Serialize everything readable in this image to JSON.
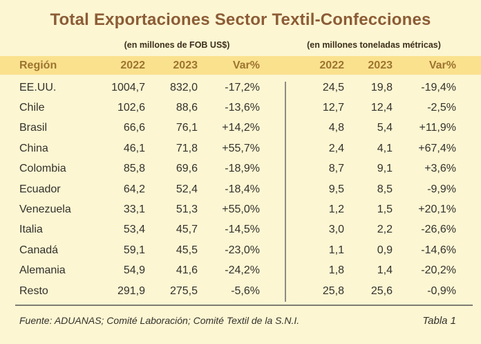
{
  "title": "Total Exportaciones Sector Textil-Confecciones",
  "footer": {
    "source": "Fuente: ADUANAS; Comité Laboración; Comité Textil de la S.N.I.",
    "table_label": "Tabla 1"
  },
  "colors": {
    "background": "#FCF6D3",
    "header_band": "#FAE18E",
    "title_text": "#8C5C35",
    "header_text": "#9D7430",
    "body_text": "#33312B",
    "rule_gray": "#7D7D74"
  },
  "chart_data": {
    "type": "table",
    "title": "Total Exportaciones Sector Textil-Confecciones",
    "row_header": "Región",
    "column_groups": [
      {
        "label": "(en millones de FOB US$)",
        "columns": [
          "2022",
          "2023",
          "Var%"
        ]
      },
      {
        "label": "(en millones toneladas métricas)",
        "columns": [
          "2022",
          "2023",
          "Var%"
        ]
      }
    ],
    "rows": [
      {
        "region": "EE.UU.",
        "fob_musd": [
          "1004,7",
          "832,0",
          "-17,2%"
        ],
        "ton_m": [
          "24,5",
          "19,8",
          "-19,4%"
        ]
      },
      {
        "region": "Chile",
        "fob_musd": [
          "102,6",
          "88,6",
          "-13,6%"
        ],
        "ton_m": [
          "12,7",
          "12,4",
          "-2,5%"
        ]
      },
      {
        "region": "Brasil",
        "fob_musd": [
          "66,6",
          "76,1",
          "+14,2%"
        ],
        "ton_m": [
          "4,8",
          "5,4",
          "+11,9%"
        ]
      },
      {
        "region": "China",
        "fob_musd": [
          "46,1",
          "71,8",
          "+55,7%"
        ],
        "ton_m": [
          "2,4",
          "4,1",
          "+67,4%"
        ]
      },
      {
        "region": "Colombia",
        "fob_musd": [
          "85,8",
          "69,6",
          "-18,9%"
        ],
        "ton_m": [
          "8,7",
          "9,1",
          "+3,6%"
        ]
      },
      {
        "region": "Ecuador",
        "fob_musd": [
          "64,2",
          "52,4",
          "-18,4%"
        ],
        "ton_m": [
          "9,5",
          "8,5",
          "-9,9%"
        ]
      },
      {
        "region": "Venezuela",
        "fob_musd": [
          "33,1",
          "51,3",
          "+55,0%"
        ],
        "ton_m": [
          "1,2",
          "1,5",
          "+20,1%"
        ]
      },
      {
        "region": "Italia",
        "fob_musd": [
          "53,4",
          "45,7",
          "-14,5%"
        ],
        "ton_m": [
          "3,0",
          "2,2",
          "-26,6%"
        ]
      },
      {
        "region": "Canadá",
        "fob_musd": [
          "59,1",
          "45,5",
          "-23,0%"
        ],
        "ton_m": [
          "1,1",
          "0,9",
          "-14,6%"
        ]
      },
      {
        "region": "Alemania",
        "fob_musd": [
          "54,9",
          "41,6",
          "-24,2%"
        ],
        "ton_m": [
          "1,8",
          "1,4",
          "-20,2%"
        ]
      },
      {
        "region": "Resto",
        "fob_musd": [
          "291,9",
          "275,5",
          "-5,6%"
        ],
        "ton_m": [
          "25,8",
          "25,6",
          "-0,9%"
        ]
      }
    ]
  }
}
